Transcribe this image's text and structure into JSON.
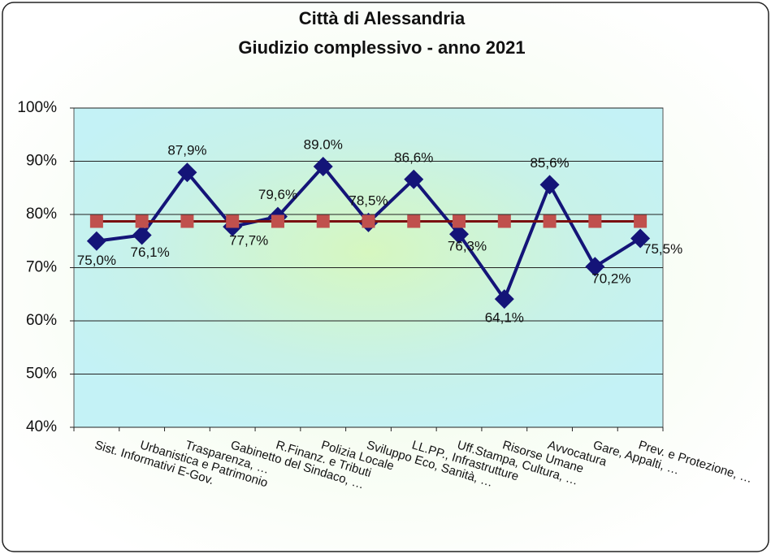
{
  "chart_data": {
    "type": "line",
    "title": "Città di Alessandria",
    "subtitle": "Giudizio complessivo - anno 2021",
    "categories": [
      "Sist. Informativi E-Gov.",
      "Urbanistica e Patrimonio",
      "Trasparenza, …",
      "Gabinetto del Sindaco, …",
      "R.Finanz. e Tributi",
      "Polizia Locale",
      "Sviluppo Eco, Sanità, …",
      "LL.PP., Infrastrutture",
      "Uff.Stampa, Cultura, …",
      "Risorse Umane",
      "Avvocatura",
      "Gare, Appalti, …",
      "Prev. e Protezione, …"
    ],
    "series": [
      {
        "color": "#141478",
        "marker": "diamond",
        "values": [
          75.0,
          76.1,
          87.9,
          77.7,
          79.6,
          89.0,
          78.5,
          86.6,
          76.3,
          64.1,
          85.6,
          70.2,
          75.5
        ],
        "value_labels": [
          "75,0%",
          "76,1%",
          "87,9%",
          "77,7%",
          "79,6%",
          "89.0%",
          "78,5%",
          "86,6%",
          "76,3%",
          "64,1%",
          "85,6%",
          "70,2%",
          "75,5%"
        ]
      },
      {
        "color": "#c0504d",
        "line_color": "#7a1010",
        "marker": "square",
        "values": [
          78.7,
          78.7,
          78.7,
          78.7,
          78.7,
          78.7,
          78.7,
          78.7,
          78.7,
          78.7,
          78.7,
          78.7,
          78.7
        ]
      }
    ],
    "ylim": [
      40,
      100
    ],
    "yticks": [
      {
        "value": 40,
        "label": "40%"
      },
      {
        "value": 50,
        "label": "50%"
      },
      {
        "value": 60,
        "label": "60%"
      },
      {
        "value": 70,
        "label": "70%"
      },
      {
        "value": 80,
        "label": "80%"
      },
      {
        "value": 90,
        "label": "90%"
      },
      {
        "value": 100,
        "label": "100%"
      }
    ],
    "grid": true
  }
}
